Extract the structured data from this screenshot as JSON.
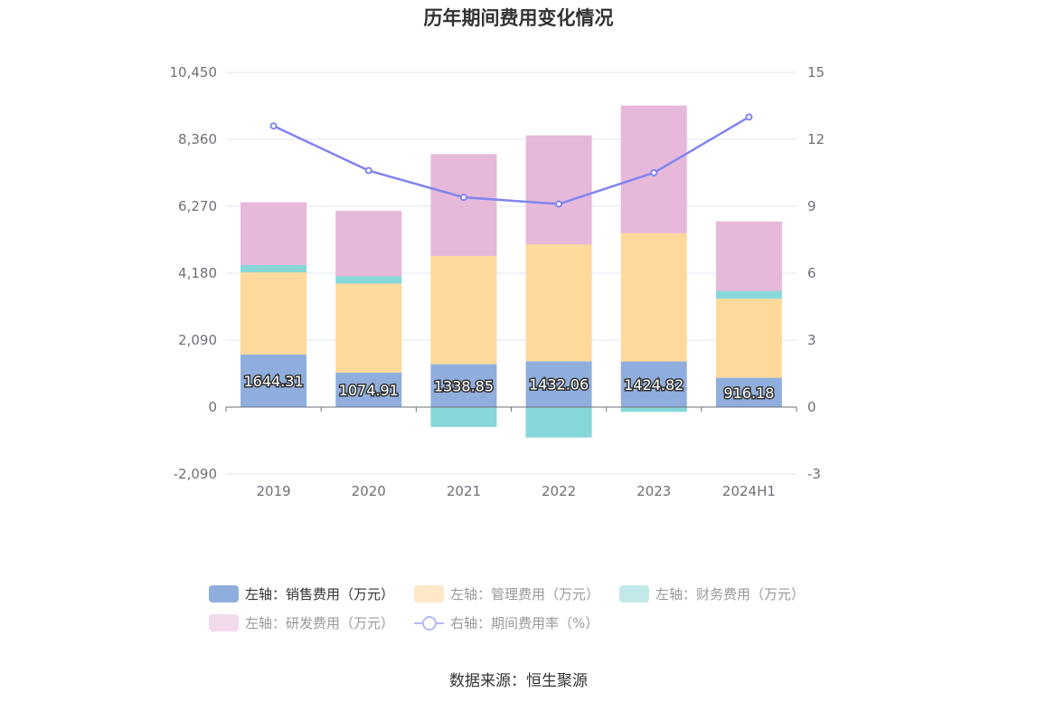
{
  "chart_data": {
    "type": "bar",
    "title": "历年期间费用变化情况",
    "categories": [
      "2019",
      "2020",
      "2021",
      "2022",
      "2023",
      "2024H1"
    ],
    "series": [
      {
        "name": "左轴：销售费用（万元）",
        "type": "bar",
        "axis": "left",
        "color": "#8faedd",
        "values": [
          1644.31,
          1074.91,
          1338.85,
          1432.06,
          1424.82,
          916.18
        ],
        "labels": [
          "1644.31",
          "1074.91",
          "1338.85",
          "1432.06",
          "1424.82",
          "916.18"
        ]
      },
      {
        "name": "左轴：管理费用（万元）",
        "type": "bar",
        "axis": "left",
        "color": "#fed99b",
        "values": [
          2560,
          2780,
          3380,
          3650,
          4000,
          2470
        ]
      },
      {
        "name": "左轴：财务费用（万元）",
        "type": "bar",
        "axis": "left",
        "color": "#86d7d8",
        "values": [
          230,
          230,
          -620,
          -950,
          -150,
          240
        ]
      },
      {
        "name": "左轴：研发费用（万元）",
        "type": "bar",
        "axis": "left",
        "color": "#e6b8da",
        "values": [
          1960,
          2040,
          3180,
          3400,
          3990,
          2170
        ]
      },
      {
        "name": "右轴：期间费用率（%）",
        "type": "line",
        "axis": "right",
        "color": "#7f85ee",
        "values": [
          12.6,
          10.6,
          9.4,
          9.1,
          10.5,
          13.0
        ]
      }
    ],
    "left_axis": {
      "ticks": [
        -2090,
        0,
        2090,
        4180,
        6270,
        8360,
        10450
      ],
      "tick_labels": [
        "-2,090",
        "0",
        "2,090",
        "4,180",
        "6,270",
        "8,360",
        "10,450"
      ],
      "ylim": [
        -2090,
        10450
      ]
    },
    "right_axis": {
      "ticks": [
        -3,
        0,
        3,
        6,
        9,
        12,
        15
      ],
      "tick_labels": [
        "-3",
        "0",
        "3",
        "6",
        "9",
        "12",
        "15"
      ],
      "ylim": [
        -3,
        15
      ]
    },
    "grid": true,
    "legend_position": "bottom"
  },
  "legend": {
    "items": [
      {
        "label": "左轴：销售费用（万元）",
        "color": "#8faedd",
        "kind": "bar",
        "state": "active"
      },
      {
        "label": "左轴：管理费用（万元）",
        "color": "#fde8c8",
        "kind": "bar",
        "state": "dim"
      },
      {
        "label": "左轴：财务费用（万元）",
        "color": "#c2e9ea",
        "kind": "bar",
        "state": "dim"
      },
      {
        "label": "左轴：研发费用（万元）",
        "color": "#f2d9ec",
        "kind": "bar",
        "state": "dim"
      },
      {
        "label": "右轴：期间费用率（%）",
        "color": "#b5b8f2",
        "kind": "line",
        "state": "dim"
      }
    ]
  },
  "source": "数据来源：恒生聚源"
}
